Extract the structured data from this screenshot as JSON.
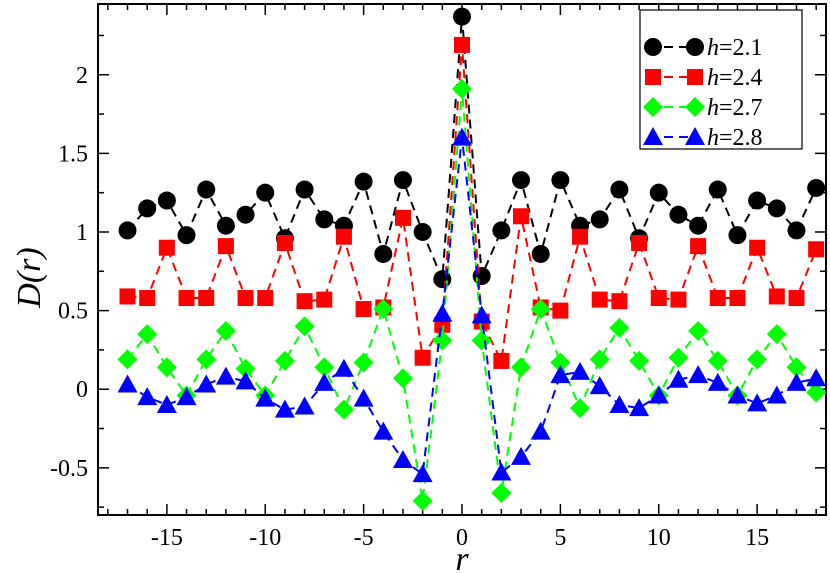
{
  "chart_data": {
    "type": "line",
    "xlabel": "r",
    "ylabel": "D(r)",
    "xlim": [
      -18.5,
      18.5
    ],
    "ylim": [
      -0.8,
      2.45
    ],
    "xticks": [
      -15,
      -10,
      -5,
      0,
      5,
      10,
      15
    ],
    "xtick_labels": [
      "-15",
      "-10",
      "-5",
      "0",
      "5",
      "10",
      "15"
    ],
    "yticks": [
      -0.5,
      0,
      0.5,
      1,
      1.5,
      2
    ],
    "ytick_labels": [
      "-0.5",
      "0",
      "0.5",
      "1",
      "1.5",
      "2"
    ],
    "grid": false,
    "legend_position": "top-right",
    "x": [
      -17,
      -16,
      -15,
      -14,
      -13,
      -12,
      -11,
      -10,
      -9,
      -8,
      -7,
      -6,
      -5,
      -4,
      -3,
      -2,
      -1,
      0,
      1,
      2,
      3,
      4,
      5,
      6,
      7,
      8,
      9,
      10,
      11,
      12,
      13,
      14,
      15,
      16,
      17,
      18
    ],
    "series": [
      {
        "name_prefix": "h",
        "name_value": "=2.1",
        "marker": "circle",
        "color": "#000000",
        "values": [
          1.01,
          1.15,
          1.2,
          0.98,
          1.27,
          1.04,
          1.11,
          1.25,
          0.96,
          1.27,
          1.08,
          1.04,
          1.32,
          0.86,
          1.33,
          1.0,
          0.7,
          2.37,
          0.72,
          1.01,
          1.33,
          0.86,
          1.33,
          1.04,
          1.08,
          1.27,
          0.96,
          1.25,
          1.11,
          1.04,
          1.27,
          0.98,
          1.2,
          1.15,
          1.01,
          1.28
        ]
      },
      {
        "name_prefix": "h",
        "name_value": "=2.4",
        "marker": "square",
        "color": "#ff0000",
        "values": [
          0.59,
          0.58,
          0.9,
          0.58,
          0.58,
          0.91,
          0.58,
          0.58,
          0.93,
          0.56,
          0.57,
          0.97,
          0.51,
          0.52,
          1.09,
          0.2,
          0.41,
          2.19,
          0.43,
          0.18,
          1.1,
          0.52,
          0.5,
          0.97,
          0.57,
          0.56,
          0.93,
          0.58,
          0.57,
          0.91,
          0.58,
          0.58,
          0.9,
          0.59,
          0.58,
          0.89
        ]
      },
      {
        "name_prefix": "h",
        "name_value": "=2.7",
        "marker": "diamond",
        "color": "#00ff00",
        "values": [
          0.19,
          0.35,
          0.14,
          -0.04,
          0.19,
          0.37,
          0.13,
          -0.04,
          0.18,
          0.4,
          0.14,
          -0.13,
          0.17,
          0.51,
          0.07,
          -0.71,
          0.31,
          1.91,
          0.31,
          -0.66,
          0.14,
          0.51,
          0.17,
          -0.12,
          0.19,
          0.39,
          0.18,
          -0.04,
          0.2,
          0.37,
          0.18,
          -0.04,
          0.19,
          0.35,
          0.14,
          -0.02
        ]
      },
      {
        "name_prefix": "h",
        "name_value": "=2.8",
        "marker": "triangle",
        "color": "#0000ff",
        "values": [
          0.03,
          -0.05,
          -0.1,
          -0.05,
          0.03,
          0.08,
          0.05,
          -0.06,
          -0.13,
          -0.11,
          0.04,
          0.13,
          -0.06,
          -0.27,
          -0.45,
          -0.54,
          0.48,
          1.6,
          0.47,
          -0.53,
          -0.43,
          -0.27,
          0.09,
          0.11,
          0.02,
          -0.1,
          -0.12,
          -0.04,
          0.06,
          0.09,
          0.04,
          -0.04,
          -0.09,
          -0.04,
          0.04,
          0.07
        ]
      }
    ]
  }
}
